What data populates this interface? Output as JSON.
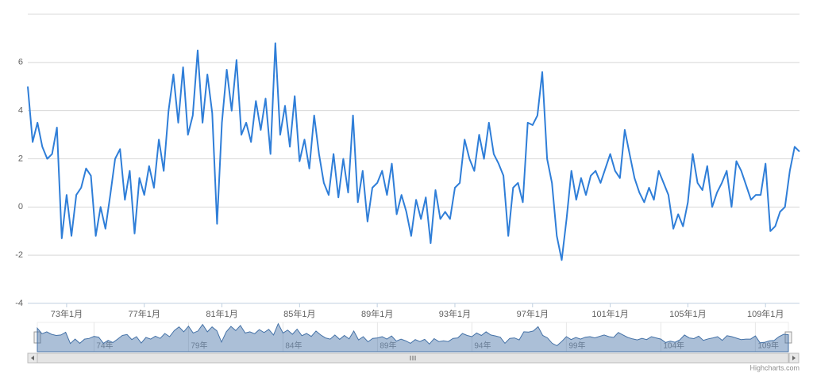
{
  "chart_data": {
    "type": "line",
    "x": [
      "71年1月",
      "71年4月",
      "71年7月",
      "71年10月",
      "72年1月",
      "72年4月",
      "72年7月",
      "72年10月",
      "73年1月",
      "73年4月",
      "73年7月",
      "73年10月",
      "74年1月",
      "74年4月",
      "74年7月",
      "74年10月",
      "75年1月",
      "75年4月",
      "75年7月",
      "75年10月",
      "76年1月",
      "76年4月",
      "76年7月",
      "76年10月",
      "77年1月",
      "77年4月",
      "77年7月",
      "77年10月",
      "78年1月",
      "78年4月",
      "78年7月",
      "78年10月",
      "79年1月",
      "79年4月",
      "79年7月",
      "79年10月",
      "80年1月",
      "80年4月",
      "80年7月",
      "80年10月",
      "81年1月",
      "81年4月",
      "81年7月",
      "81年10月",
      "82年1月",
      "82年4月",
      "82年7月",
      "82年10月",
      "83年1月",
      "83年4月",
      "83年7月",
      "83年10月",
      "84年1月",
      "84年4月",
      "84年7月",
      "84年10月",
      "85年1月",
      "85年4月",
      "85年7月",
      "85年10月",
      "86年1月",
      "86年4月",
      "86年7月",
      "86年10月",
      "87年1月",
      "87年4月",
      "87年7月",
      "87年10月",
      "88年1月",
      "88年4月",
      "88年7月",
      "88年10月",
      "89年1月",
      "89年4月",
      "89年7月",
      "89年10月",
      "90年1月",
      "90年4月",
      "90年7月",
      "90年10月",
      "91年1月",
      "91年4月",
      "91年7月",
      "91年10月",
      "92年1月",
      "92年4月",
      "92年7月",
      "92年10月",
      "93年1月",
      "93年4月",
      "93年7月",
      "93年10月",
      "94年1月",
      "94年4月",
      "94年7月",
      "94年10月",
      "95年1月",
      "95年4月",
      "95年7月",
      "95年10月",
      "96年1月",
      "96年4月",
      "96年7月",
      "96年10月",
      "97年1月",
      "97年4月",
      "97年7月",
      "97年10月",
      "98年1月",
      "98年4月",
      "98年7月",
      "98年10月",
      "99年1月",
      "99年4月",
      "99年7月",
      "99年10月",
      "100年1月",
      "100年4月",
      "100年7月",
      "100年10月",
      "101年1月",
      "101年4月",
      "101年7月",
      "101年10月",
      "102年1月",
      "102年4月",
      "102年7月",
      "102年10月",
      "103年1月",
      "103年4月",
      "103年7月",
      "103年10月",
      "104年1月",
      "104年4月",
      "104年7月",
      "104年10月",
      "105年1月",
      "105年4月",
      "105年7月",
      "105年10月",
      "106年1月",
      "106年4月",
      "106年7月",
      "106年10月",
      "107年1月",
      "107年4月",
      "107年7月",
      "107年10月",
      "108年1月",
      "108年4月",
      "108年7月",
      "108年10月",
      "109年1月",
      "109年4月",
      "109年7月",
      "109年10月",
      "110年1月",
      "110年4月",
      "110年7月",
      "110年10月"
    ],
    "series": [
      {
        "color": "#2f7ed8",
        "values": [
          5.0,
          2.7,
          3.5,
          2.5,
          2.0,
          2.2,
          3.3,
          -1.3,
          0.5,
          -1.2,
          0.5,
          0.8,
          1.6,
          1.3,
          -1.2,
          0.0,
          -0.9,
          0.5,
          2.0,
          2.4,
          0.3,
          1.5,
          -1.1,
          1.2,
          0.5,
          1.7,
          0.8,
          2.8,
          1.5,
          4.0,
          5.5,
          3.5,
          5.8,
          3.0,
          3.8,
          6.5,
          3.5,
          5.5,
          3.9,
          -0.7,
          3.5,
          5.7,
          4.0,
          6.1,
          3.0,
          3.5,
          2.7,
          4.4,
          3.2,
          4.5,
          2.2,
          6.8,
          3.0,
          4.2,
          2.5,
          4.6,
          1.9,
          2.8,
          1.6,
          3.8,
          2.2,
          1.0,
          0.5,
          2.2,
          0.4,
          2.0,
          0.6,
          3.8,
          0.2,
          1.5,
          -0.6,
          0.8,
          1.0,
          1.5,
          0.5,
          1.8,
          -0.3,
          0.5,
          -0.2,
          -1.2,
          0.3,
          -0.5,
          0.4,
          -1.5,
          0.7,
          -0.5,
          -0.2,
          -0.5,
          0.8,
          1.0,
          2.8,
          2.0,
          1.5,
          3.0,
          2.0,
          3.5,
          2.2,
          1.8,
          1.3,
          -1.2,
          0.8,
          1.0,
          0.2,
          3.5,
          3.4,
          3.8,
          5.6,
          2.0,
          1.0,
          -1.2,
          -2.2,
          -0.5,
          1.5,
          0.3,
          1.2,
          0.5,
          1.3,
          1.5,
          1.0,
          1.6,
          2.2,
          1.5,
          1.2,
          3.2,
          2.2,
          1.2,
          0.6,
          0.2,
          0.8,
          0.3,
          1.5,
          1.0,
          0.5,
          -0.9,
          -0.3,
          -0.8,
          0.2,
          2.2,
          1.0,
          0.7,
          1.7,
          0.0,
          0.6,
          1.0,
          1.5,
          0.0,
          1.9,
          1.5,
          0.9,
          0.3,
          0.5,
          0.5,
          1.8,
          -1.0,
          -0.8,
          -0.2,
          0.0,
          1.5,
          2.5,
          2.3
        ]
      }
    ],
    "xlim": [
      "71年1月",
      "110年10月"
    ],
    "xticks": [
      "73年1月",
      "77年1月",
      "81年1月",
      "85年1月",
      "89年1月",
      "93年1月",
      "97年1月",
      "101年1月",
      "105年1月",
      "109年1月"
    ],
    "ylim": [
      -4,
      8
    ],
    "yticks": [
      -4,
      -2,
      0,
      2,
      4,
      6
    ],
    "grid": true,
    "navigator": {
      "color": "#4572a7",
      "xticks": [
        "74年",
        "79年",
        "84年",
        "89年",
        "94年",
        "99年",
        "104年",
        "109年"
      ]
    },
    "credit": "Highcharts.com"
  }
}
